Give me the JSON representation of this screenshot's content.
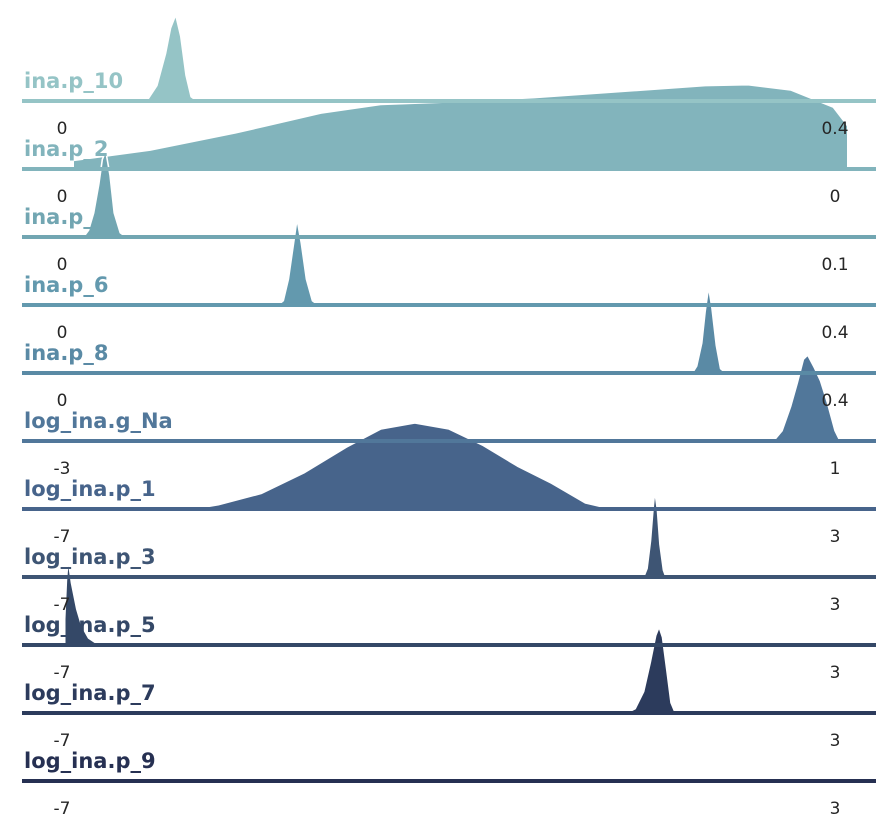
{
  "chart_data": {
    "type": "ridgeline",
    "x_domain": [
      0,
      1
    ],
    "grid": false,
    "legend": "none",
    "palette": [
      "#95c4c6",
      "#82b4bc",
      "#72a6b2",
      "#6399ae",
      "#5a8aa5",
      "#51779a",
      "#47648b",
      "#3e5574",
      "#344867",
      "#2c3b5c",
      "#263052",
      "#1f2543"
    ],
    "rows": [
      {
        "name": "ina.p_10",
        "xmin_label": "0",
        "xmax_label": "0.4",
        "density": [
          [
            0.136,
            0
          ],
          [
            0.148,
            0.03
          ],
          [
            0.158,
            0.18
          ],
          [
            0.168,
            0.55
          ],
          [
            0.174,
            0.85
          ],
          [
            0.18,
            1.0
          ],
          [
            0.186,
            0.75
          ],
          [
            0.192,
            0.3
          ],
          [
            0.198,
            0.05
          ],
          [
            0.205,
            0
          ]
        ]
      },
      {
        "name": "ina.p_2",
        "xmin_label": "0",
        "xmax_label": "0",
        "density": [
          [
            0.06,
            0.1
          ],
          [
            0.15,
            0.22
          ],
          [
            0.25,
            0.42
          ],
          [
            0.35,
            0.65
          ],
          [
            0.42,
            0.75
          ],
          [
            0.5,
            0.78
          ],
          [
            0.6,
            0.83
          ],
          [
            0.7,
            0.9
          ],
          [
            0.8,
            0.97
          ],
          [
            0.85,
            0.98
          ],
          [
            0.9,
            0.92
          ],
          [
            0.95,
            0.72
          ],
          [
            0.967,
            0.5
          ],
          [
            0.967,
            0
          ]
        ]
      },
      {
        "name": "ina.p_4",
        "xmin_label": "0",
        "xmax_label": "0.1",
        "density": [
          [
            0.072,
            0
          ],
          [
            0.078,
            0.08
          ],
          [
            0.084,
            0.28
          ],
          [
            0.09,
            0.62
          ],
          [
            0.094,
            0.9
          ],
          [
            0.098,
            1.0
          ],
          [
            0.103,
            0.72
          ],
          [
            0.108,
            0.28
          ],
          [
            0.115,
            0.05
          ],
          [
            0.122,
            0
          ]
        ]
      },
      {
        "name": "ina.p_6",
        "xmin_label": "0",
        "xmax_label": "0.4",
        "density": [
          [
            0.3,
            0
          ],
          [
            0.306,
            0.05
          ],
          [
            0.312,
            0.3
          ],
          [
            0.318,
            0.72
          ],
          [
            0.322,
            1.0
          ],
          [
            0.327,
            0.72
          ],
          [
            0.333,
            0.3
          ],
          [
            0.34,
            0.05
          ],
          [
            0.347,
            0
          ]
        ]
      },
      {
        "name": "ina.p_8",
        "xmin_label": "0",
        "xmax_label": "0.4",
        "density": [
          [
            0.785,
            0
          ],
          [
            0.79,
            0.08
          ],
          [
            0.796,
            0.35
          ],
          [
            0.8,
            0.72
          ],
          [
            0.804,
            1.0
          ],
          [
            0.808,
            0.75
          ],
          [
            0.813,
            0.32
          ],
          [
            0.818,
            0.05
          ],
          [
            0.824,
            0
          ]
        ]
      },
      {
        "name": "log_ina.g_Na",
        "xmin_label": "-3",
        "xmax_label": "1",
        "density": [
          [
            0.88,
            0
          ],
          [
            0.89,
            0.12
          ],
          [
            0.9,
            0.4
          ],
          [
            0.908,
            0.68
          ],
          [
            0.915,
            0.95
          ],
          [
            0.92,
            1.0
          ],
          [
            0.928,
            0.85
          ],
          [
            0.935,
            0.7
          ],
          [
            0.943,
            0.45
          ],
          [
            0.952,
            0.12
          ],
          [
            0.958,
            0
          ]
        ]
      },
      {
        "name": "log_ina.p_1",
        "xmin_label": "-7",
        "xmax_label": "3",
        "density": [
          [
            0.2,
            0
          ],
          [
            0.23,
            0.05
          ],
          [
            0.28,
            0.18
          ],
          [
            0.33,
            0.42
          ],
          [
            0.38,
            0.72
          ],
          [
            0.42,
            0.93
          ],
          [
            0.46,
            1.0
          ],
          [
            0.5,
            0.93
          ],
          [
            0.54,
            0.74
          ],
          [
            0.58,
            0.5
          ],
          [
            0.62,
            0.3
          ],
          [
            0.66,
            0.07
          ],
          [
            0.69,
            0
          ]
        ]
      },
      {
        "name": "log_ina.p_3",
        "xmin_label": "-7",
        "xmax_label": "3",
        "density": [
          [
            0.728,
            0
          ],
          [
            0.732,
            0.1
          ],
          [
            0.736,
            0.42
          ],
          [
            0.739,
            0.8
          ],
          [
            0.741,
            1.0
          ],
          [
            0.744,
            0.78
          ],
          [
            0.747,
            0.38
          ],
          [
            0.751,
            0.08
          ],
          [
            0.754,
            0
          ]
        ]
      },
      {
        "name": "log_ina.p_5",
        "xmin_label": "-7",
        "xmax_label": "3",
        "density": [
          [
            0.05,
            0.3
          ],
          [
            0.052,
            0.75
          ],
          [
            0.054,
            1.0
          ],
          [
            0.058,
            0.72
          ],
          [
            0.064,
            0.42
          ],
          [
            0.07,
            0.22
          ],
          [
            0.078,
            0.08
          ],
          [
            0.09,
            0
          ]
        ]
      },
      {
        "name": "log_ina.p_7",
        "xmin_label": "-7",
        "xmax_label": "3",
        "density": [
          [
            0.708,
            0
          ],
          [
            0.718,
            0.05
          ],
          [
            0.728,
            0.25
          ],
          [
            0.736,
            0.6
          ],
          [
            0.742,
            0.9
          ],
          [
            0.746,
            1.0
          ],
          [
            0.75,
            0.88
          ],
          [
            0.755,
            0.5
          ],
          [
            0.76,
            0.12
          ],
          [
            0.765,
            0
          ]
        ]
      },
      {
        "name": "log_ina.p_9",
        "xmin_label": "-7",
        "xmax_label": "3",
        "density": []
      }
    ]
  }
}
